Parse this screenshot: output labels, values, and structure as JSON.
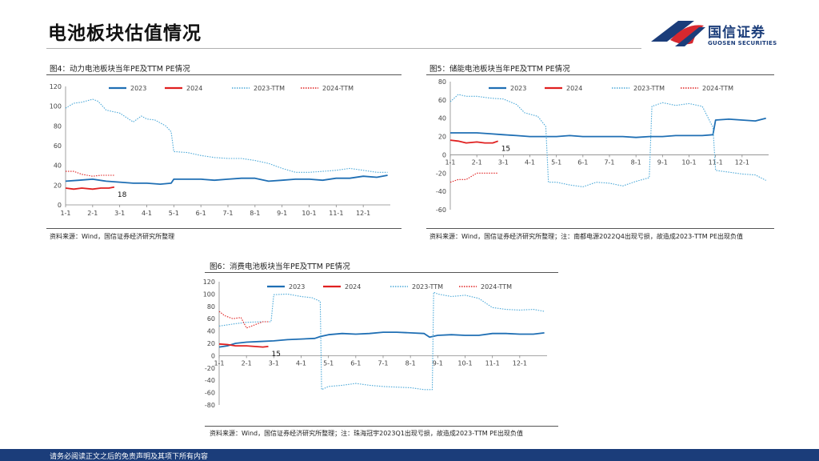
{
  "page": {
    "title": "电池板块估值情况",
    "logo_name": "国信证券",
    "logo_sub": "GUOSEN SECURITIES",
    "footer": "请务必阅读正文之后的免责声明及其项下所有内容"
  },
  "colors": {
    "s2023": "#1f6fb4",
    "s2024": "#e02020",
    "s2023ttm": "#4aa8d8",
    "s2024ttm": "#e02020",
    "brand": "#1b3d7a",
    "logo_red": "#d7282f"
  },
  "figures": [
    {
      "title": "图4：动力电池板块当年PE及TTM PE情况",
      "source": "资料来源：Wind，国信证券经济研究所整理"
    },
    {
      "title": "图5：储能电池板块当年PE及TTM PE情况",
      "source": "资料来源：Wind，国信证券经济研究所整理；注：南都电源2022Q4出现亏损，故造成2023-TTM PE出现负值"
    },
    {
      "title": "图6：消费电池板块当年PE及TTM PE情况",
      "source": "资料来源：Wind，国信证券经济研究所整理；注：珠海冠宇2023Q1出现亏损，故造成2023-TTM PE出现负值"
    }
  ],
  "chart_data": [
    {
      "type": "line",
      "title": "图4：动力电池板块当年PE及TTM PE情况",
      "x_ticks": [
        "1-1",
        "2-1",
        "3-1",
        "4-1",
        "5-1",
        "6-1",
        "7-1",
        "8-1",
        "9-1",
        "10-1",
        "11-1",
        "12-1"
      ],
      "x_unit": "month (1 = Jan 1)",
      "ylim": [
        0,
        120
      ],
      "y_ticks": [
        0,
        20,
        40,
        60,
        80,
        100,
        120
      ],
      "legend": [
        "2023",
        "2024",
        "2023-TTM",
        "2024-TTM"
      ],
      "annotation": "18",
      "series": [
        {
          "name": "2023",
          "x": [
            1,
            1.5,
            2,
            2.5,
            3,
            3.5,
            4,
            4.5,
            4.9,
            5.0,
            5.5,
            6,
            6.5,
            7,
            7.5,
            8,
            8.5,
            9,
            9.5,
            10,
            10.5,
            11,
            11.5,
            12,
            12.5,
            12.9
          ],
          "y": [
            24,
            25,
            26,
            24,
            23,
            22,
            22,
            21,
            22,
            26,
            26,
            26,
            25,
            26,
            27,
            27,
            24,
            25,
            26,
            26,
            25,
            27,
            27,
            29,
            28,
            30
          ]
        },
        {
          "name": "2024",
          "x": [
            1,
            1.3,
            1.6,
            2,
            2.3,
            2.6,
            2.8
          ],
          "y": [
            17,
            16,
            17,
            16,
            17,
            17,
            18
          ]
        },
        {
          "name": "2023-TTM",
          "x": [
            1,
            1.3,
            1.6,
            2,
            2.2,
            2.5,
            3,
            3.5,
            3.8,
            4,
            4.3,
            4.7,
            4.9,
            5.0,
            5.5,
            6,
            6.5,
            7,
            7.5,
            8,
            8.5,
            9,
            9.5,
            10,
            10.5,
            11,
            11.5,
            12,
            12.5,
            12.9
          ],
          "y": [
            98,
            103,
            104,
            107,
            105,
            96,
            93,
            84,
            90,
            87,
            86,
            80,
            74,
            54,
            53,
            50,
            48,
            47,
            47,
            45,
            42,
            37,
            33,
            33,
            34,
            35,
            37,
            35,
            33,
            33
          ]
        },
        {
          "name": "2024-TTM",
          "x": [
            1,
            1.3,
            1.6,
            2,
            2.3,
            2.6,
            2.8
          ],
          "y": [
            34,
            34,
            31,
            29,
            30,
            30,
            30
          ]
        }
      ]
    },
    {
      "type": "line",
      "title": "图5：储能电池板块当年PE及TTM PE情况",
      "x_ticks": [
        "1-1",
        "2-1",
        "3-1",
        "4-1",
        "5-1",
        "6-1",
        "7-1",
        "8-1",
        "9-1",
        "10-1",
        "11-1",
        "12-1"
      ],
      "x_unit": "month (1 = Jan 1)",
      "ylim": [
        -60,
        80
      ],
      "y_ticks": [
        -60,
        -40,
        -20,
        0,
        20,
        40,
        60,
        80
      ],
      "legend": [
        "2023",
        "2024",
        "2023-TTM",
        "2024-TTM"
      ],
      "annotation": "15",
      "series": [
        {
          "name": "2023",
          "x": [
            1,
            1.5,
            2,
            2.5,
            3,
            3.5,
            4,
            4.5,
            5,
            5.5,
            6,
            6.5,
            7,
            7.5,
            8,
            8.5,
            9,
            9.5,
            10,
            10.5,
            10.9,
            11.0,
            11.5,
            12,
            12.5,
            12.9
          ],
          "y": [
            24,
            24,
            24,
            23,
            22,
            21,
            20,
            20,
            20,
            21,
            20,
            20,
            20,
            20,
            19,
            20,
            20,
            21,
            21,
            21,
            22,
            38,
            39,
            38,
            37,
            40
          ]
        },
        {
          "name": "2024",
          "x": [
            1,
            1.3,
            1.6,
            2,
            2.3,
            2.6,
            2.8
          ],
          "y": [
            16,
            15,
            13,
            14,
            13,
            13,
            15
          ]
        },
        {
          "name": "2023-TTM",
          "x": [
            1,
            1.3,
            1.6,
            2,
            2.5,
            3,
            3.5,
            3.8,
            4.3,
            4.6,
            4.7,
            5,
            5.5,
            6,
            6.5,
            7,
            7.5,
            8,
            8.5,
            8.6,
            9,
            9.5,
            10,
            10.5,
            10.9,
            11.0,
            11.5,
            12,
            12.5,
            12.9
          ],
          "y": [
            58,
            66,
            64,
            64,
            62,
            61,
            55,
            46,
            42,
            31,
            -30,
            -30,
            -33,
            -35,
            -30,
            -31,
            -34,
            -29,
            -25,
            53,
            57,
            54,
            56,
            53,
            30,
            -17,
            -19,
            -21,
            -22,
            -28
          ]
        },
        {
          "name": "2024-TTM",
          "x": [
            1,
            1.3,
            1.6,
            2,
            2.3,
            2.6,
            2.8
          ],
          "y": [
            -30,
            -27,
            -27,
            -20,
            -20,
            -20,
            -20
          ]
        }
      ]
    },
    {
      "type": "line",
      "title": "图6：消费电池板块当年PE及TTM PE情况",
      "x_ticks": [
        "1-1",
        "2-1",
        "3-1",
        "4-1",
        "5-1",
        "6-1",
        "7-1",
        "8-1",
        "9-1",
        "10-1",
        "11-1",
        "12-1"
      ],
      "x_unit": "month (1 = Jan 1)",
      "ylim": [
        -80,
        120
      ],
      "y_ticks": [
        -80,
        -60,
        -40,
        -20,
        0,
        20,
        40,
        60,
        80,
        100,
        120
      ],
      "legend": [
        "2023",
        "2024",
        "2023-TTM",
        "2024-TTM"
      ],
      "annotation": "15",
      "series": [
        {
          "name": "2023",
          "x": [
            1,
            1.3,
            1.6,
            2,
            2.5,
            3,
            3.5,
            4,
            4.5,
            4.7,
            5,
            5.5,
            6,
            6.5,
            7,
            7.5,
            8,
            8.5,
            8.7,
            9,
            9.5,
            10,
            10.5,
            11,
            11.5,
            12,
            12.5,
            12.9
          ],
          "y": [
            14,
            16,
            20,
            22,
            23,
            24,
            26,
            27,
            28,
            31,
            34,
            36,
            35,
            36,
            38,
            38,
            37,
            36,
            30,
            33,
            34,
            33,
            33,
            36,
            36,
            35,
            35,
            37
          ]
        },
        {
          "name": "2024",
          "x": [
            1,
            1.3,
            1.6,
            2,
            2.3,
            2.6,
            2.8
          ],
          "y": [
            19,
            18,
            16,
            16,
            15,
            14,
            15
          ]
        },
        {
          "name": "2023-TTM",
          "x": [
            1,
            1.3,
            1.6,
            2,
            2.5,
            2.9,
            3.0,
            3.5,
            4,
            4.4,
            4.7,
            4.75,
            5,
            5.5,
            6,
            6.5,
            7,
            7.5,
            8,
            8.5,
            8.8,
            8.85,
            9,
            9.5,
            10,
            10.5,
            11,
            11.5,
            12,
            12.5,
            12.9
          ],
          "y": [
            48,
            50,
            52,
            54,
            55,
            55,
            99,
            100,
            96,
            94,
            88,
            -55,
            -50,
            -48,
            -45,
            -48,
            -50,
            -51,
            -52,
            -55,
            -55,
            103,
            100,
            96,
            98,
            93,
            78,
            75,
            74,
            75,
            72
          ]
        },
        {
          "name": "2024-TTM",
          "x": [
            1,
            1.2,
            1.5,
            1.8,
            2,
            2.3,
            2.6,
            2.8
          ],
          "y": [
            72,
            65,
            60,
            62,
            45,
            50,
            55,
            55
          ]
        }
      ]
    }
  ]
}
